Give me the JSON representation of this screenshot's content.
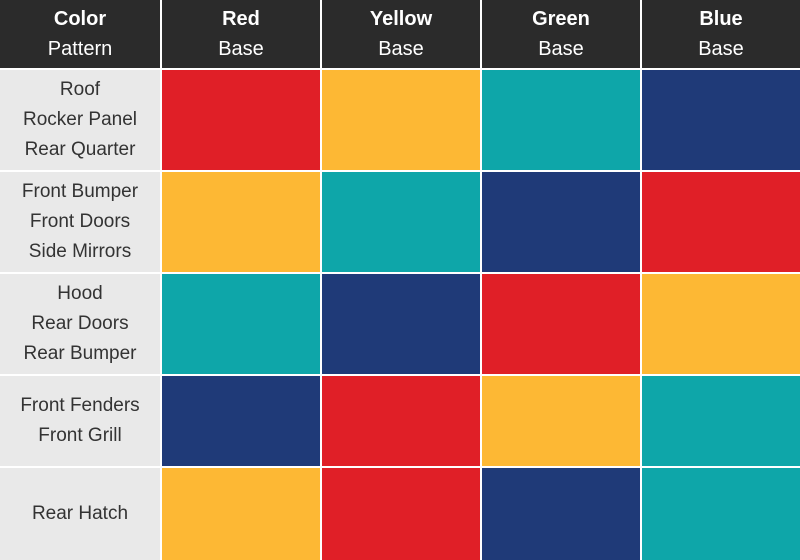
{
  "header": {
    "columns": [
      {
        "title": "Color",
        "subtitle": "Pattern"
      },
      {
        "title": "Red",
        "subtitle": "Base"
      },
      {
        "title": "Yellow",
        "subtitle": "Base"
      },
      {
        "title": "Green",
        "subtitle": "Base"
      },
      {
        "title": "Blue",
        "subtitle": "Base"
      }
    ]
  },
  "table": {
    "rows": [
      {
        "lines": [
          "Roof",
          "Rocker Panel",
          "Rear Quarter"
        ],
        "cells": [
          "#e01f27",
          "#fdb834",
          "#0ea6a9",
          "#1f3a78"
        ]
      },
      {
        "lines": [
          "Front Bumper",
          "Front Doors",
          "Side Mirrors"
        ],
        "cells": [
          "#fdb834",
          "#0ea6a9",
          "#1f3a78",
          "#e01f27"
        ]
      },
      {
        "lines": [
          "Hood",
          "Rear Doors",
          "Rear Bumper"
        ],
        "cells": [
          "#0ea6a9",
          "#1f3a78",
          "#e01f27",
          "#fdb834"
        ]
      },
      {
        "lines": [
          "Front Fenders",
          "Front Grill"
        ],
        "cells": [
          "#1f3a78",
          "#e01f27",
          "#fdb834",
          "#0ea6a9"
        ]
      },
      {
        "lines": [
          "Rear Hatch"
        ],
        "cells": [
          "#fdb834",
          "#e01f27",
          "#1f3a78",
          "#0ea6a9"
        ]
      }
    ]
  }
}
